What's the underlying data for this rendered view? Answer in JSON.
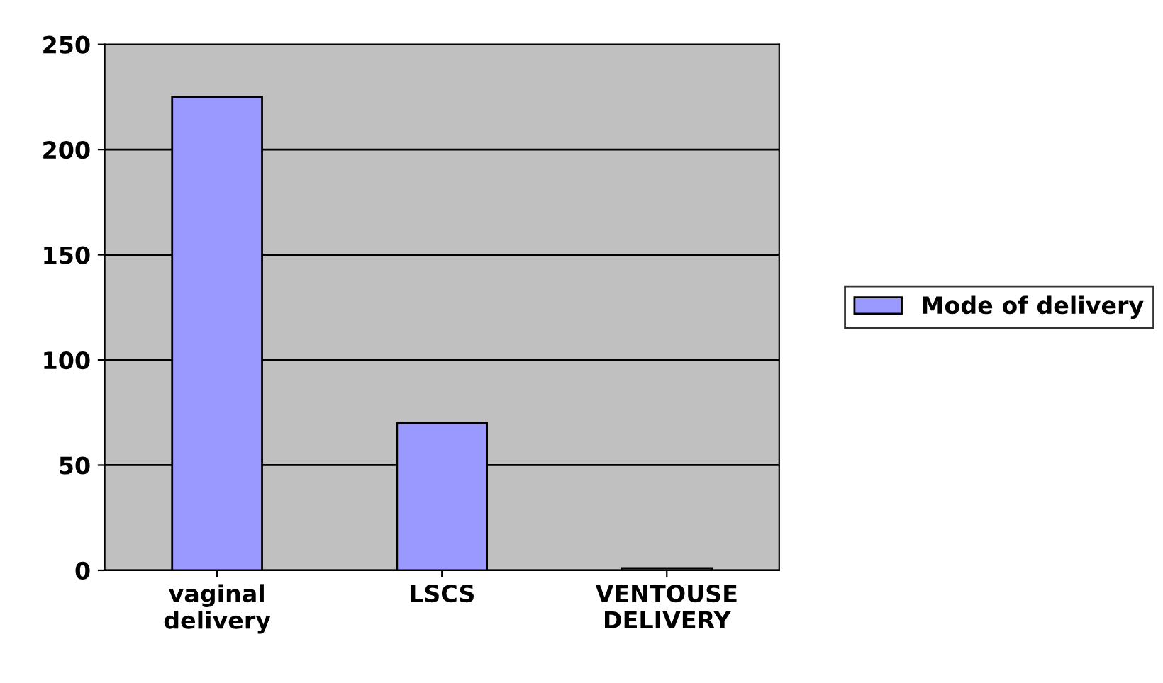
{
  "chart_data": {
    "type": "bar",
    "categories": [
      "vaginal\ndelivery",
      "LSCS",
      "VENTOUSE\nDELIVERY"
    ],
    "series": [
      {
        "name": "Mode of delivery",
        "color": "#9999ff",
        "values": [
          225,
          70,
          1
        ]
      }
    ],
    "ylim": [
      0,
      250
    ],
    "yticks": [
      0,
      50,
      100,
      150,
      200,
      250
    ],
    "grid": "y",
    "legend": "right"
  }
}
